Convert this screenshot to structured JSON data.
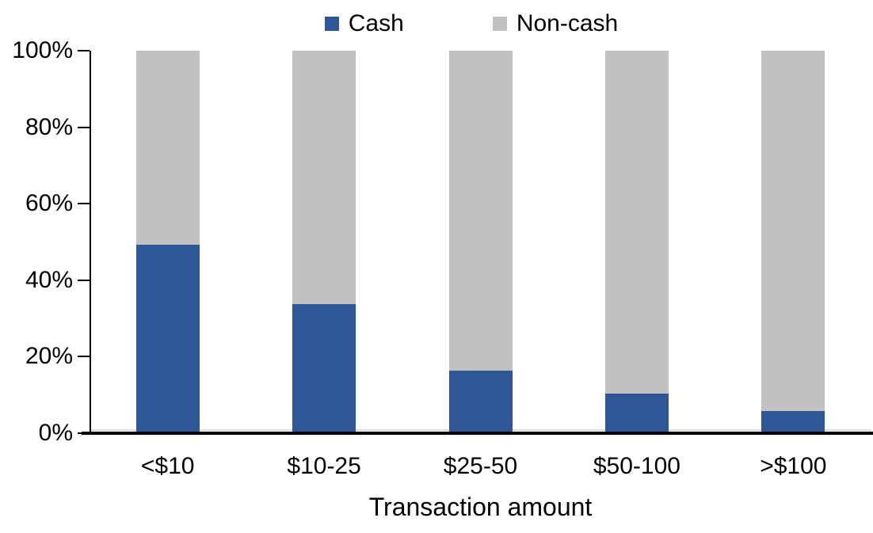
{
  "chart_data": {
    "type": "bar",
    "subtype": "stacked-100-percent",
    "categories": [
      "<$10",
      "$10-25",
      "$25-50",
      "$50-100",
      ">$100"
    ],
    "series": [
      {
        "name": "Cash",
        "color": "#2F5696",
        "values": [
          49,
          33.5,
          16,
          10,
          5.5
        ]
      },
      {
        "name": "Non-cash",
        "color": "#C1C1C1",
        "values": [
          51,
          66.5,
          84,
          90,
          94.5
        ]
      }
    ],
    "title": "",
    "xlabel": "Transaction amount",
    "ylabel": "",
    "ylim": [
      0,
      100
    ],
    "y_ticks": [
      {
        "value": 0,
        "label": "0%"
      },
      {
        "value": 20,
        "label": "20%"
      },
      {
        "value": 40,
        "label": "40%"
      },
      {
        "value": 60,
        "label": "60%"
      },
      {
        "value": 80,
        "label": "80%"
      },
      {
        "value": 100,
        "label": "100%"
      }
    ],
    "legend_position": "top-center",
    "grid": false,
    "axis_color": "#000000",
    "background_color": "#FFFFFF"
  }
}
